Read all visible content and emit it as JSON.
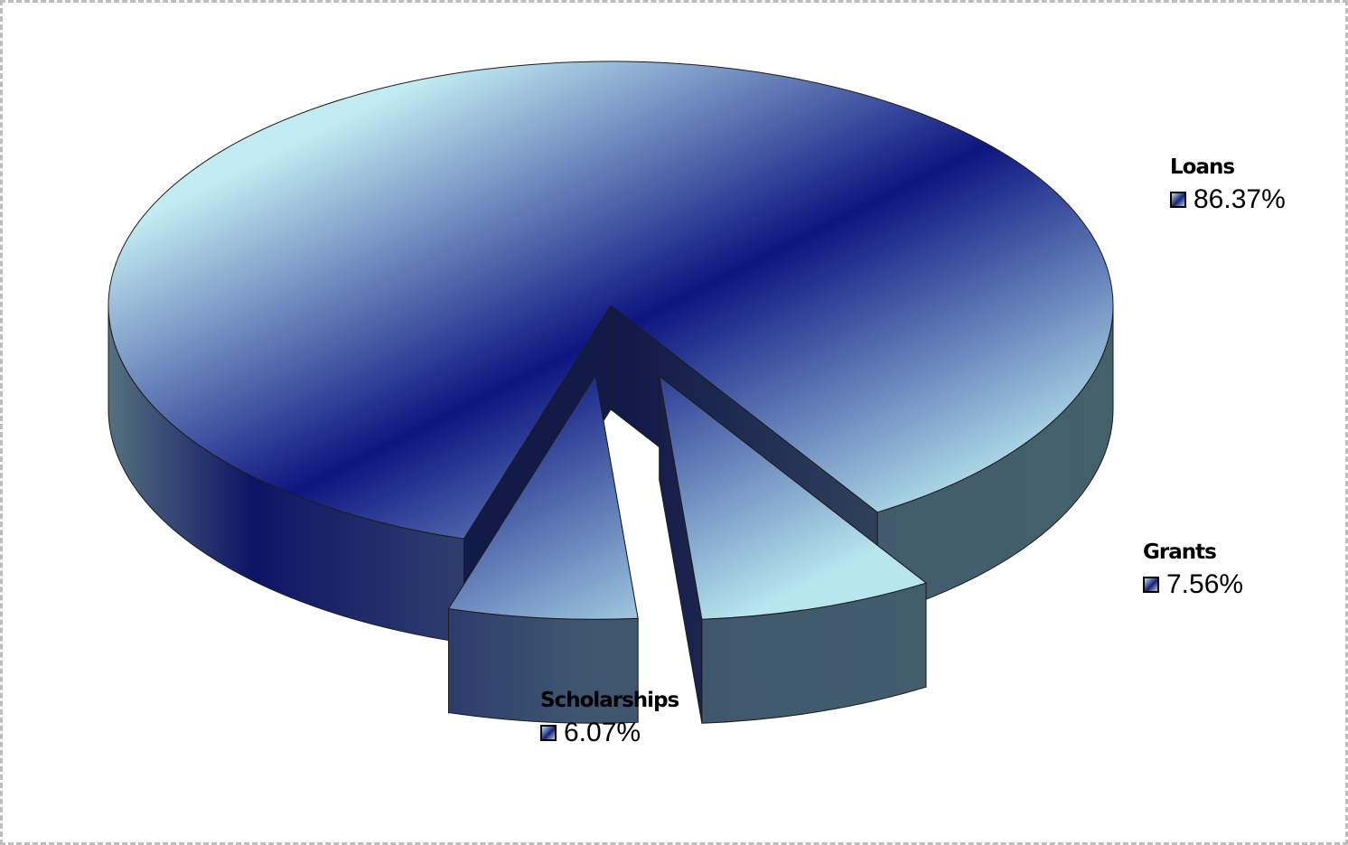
{
  "chart_data": {
    "type": "pie",
    "style": "3d-exploded",
    "slices": [
      {
        "category": "Loans",
        "value": 86.37,
        "label": "86.37%"
      },
      {
        "category": "Grants",
        "value": 7.56,
        "label": "7.56%"
      },
      {
        "category": "Scholarships",
        "value": 6.07,
        "label": "6.07%"
      }
    ],
    "colors": {
      "light": "#bfe9f0",
      "dark": "#0b1380",
      "side_light": "#56707a",
      "side_dark": "#11184a"
    }
  }
}
